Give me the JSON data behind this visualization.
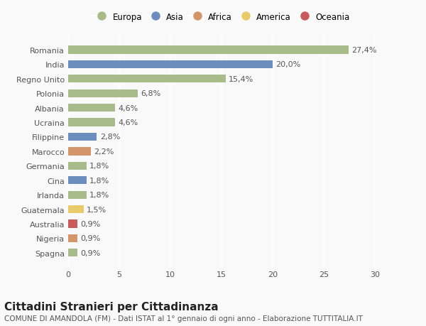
{
  "categories": [
    "Romania",
    "India",
    "Regno Unito",
    "Polonia",
    "Albania",
    "Ucraina",
    "Filippine",
    "Marocco",
    "Germania",
    "Cina",
    "Irlanda",
    "Guatemala",
    "Australia",
    "Nigeria",
    "Spagna"
  ],
  "values": [
    27.4,
    20.0,
    15.4,
    6.8,
    4.6,
    4.6,
    2.8,
    2.2,
    1.8,
    1.8,
    1.8,
    1.5,
    0.9,
    0.9,
    0.9
  ],
  "labels": [
    "27,4%",
    "20,0%",
    "15,4%",
    "6,8%",
    "4,6%",
    "4,6%",
    "2,8%",
    "2,2%",
    "1,8%",
    "1,8%",
    "1,8%",
    "1,5%",
    "0,9%",
    "0,9%",
    "0,9%"
  ],
  "continents": [
    "Europa",
    "Asia",
    "Europa",
    "Europa",
    "Europa",
    "Europa",
    "Asia",
    "Africa",
    "Europa",
    "Asia",
    "Europa",
    "America",
    "Oceania",
    "Africa",
    "Europa"
  ],
  "continent_colors": {
    "Europa": "#a8bb8a",
    "Asia": "#6b8ebf",
    "Africa": "#d4956a",
    "America": "#e8cb6a",
    "Oceania": "#c95b5b"
  },
  "legend_order": [
    "Europa",
    "Asia",
    "Africa",
    "America",
    "Oceania"
  ],
  "xlim": [
    0,
    30
  ],
  "xticks": [
    0,
    5,
    10,
    15,
    20,
    25,
    30
  ],
  "title": "Cittadini Stranieri per Cittadinanza",
  "subtitle": "COMUNE DI AMANDOLA (FM) - Dati ISTAT al 1° gennaio di ogni anno - Elaborazione TUTTITALIA.IT",
  "background_color": "#f9f9f9",
  "bar_height": 0.55,
  "label_fontsize": 8,
  "title_fontsize": 11,
  "subtitle_fontsize": 7.5,
  "ytick_fontsize": 8,
  "xtick_fontsize": 8
}
